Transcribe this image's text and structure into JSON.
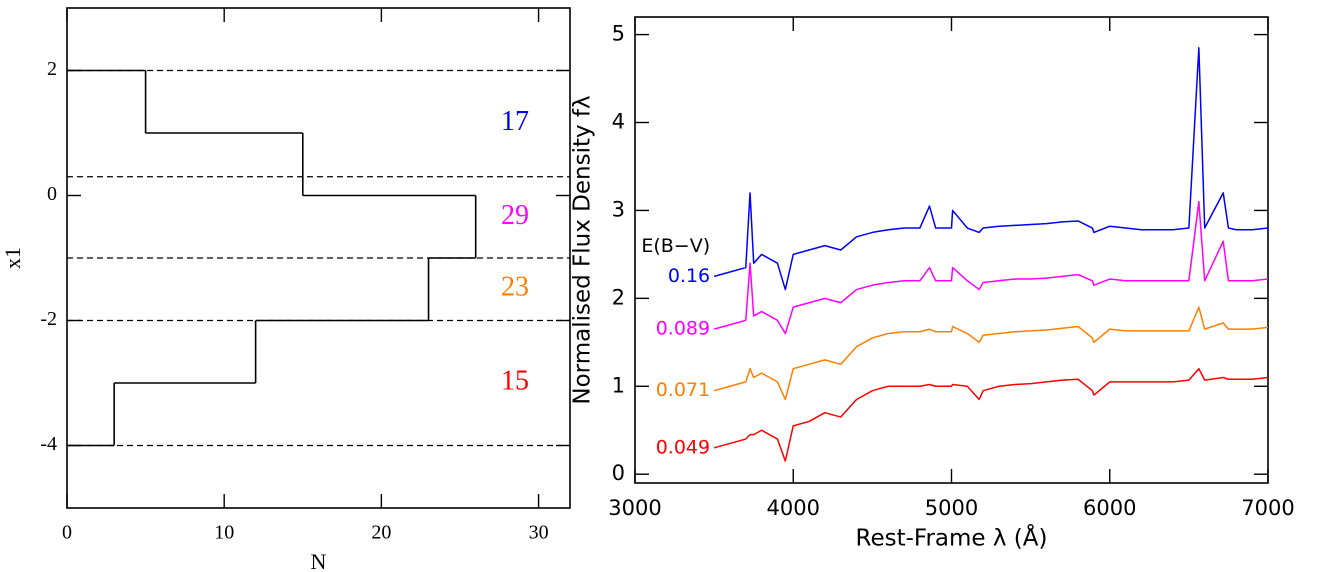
{
  "chart_data": [
    {
      "type": "histogram",
      "orientation": "horizontal",
      "xlabel": "N",
      "ylabel": "x1",
      "bins": [
        -4,
        -3,
        -2,
        -1,
        0,
        1,
        2
      ],
      "values": [
        3,
        12,
        23,
        26,
        15,
        5
      ],
      "color": "#000000",
      "xlim": [
        0,
        32
      ],
      "ylim": [
        -5,
        3
      ],
      "xticks": [
        0,
        10,
        20,
        30
      ],
      "yticks": [
        2,
        0,
        -2,
        -4
      ],
      "reference_lines": [
        2,
        0.3,
        -1,
        -2,
        -4
      ],
      "annotations": [
        {
          "text": "17",
          "color": "#0000ff"
        },
        {
          "text": "29",
          "color": "#ff00ff"
        },
        {
          "text": "23",
          "color": "#ff7f00"
        },
        {
          "text": "15",
          "color": "#ff0000"
        }
      ]
    },
    {
      "type": "line",
      "xlabel": "Rest-Frame λ (Å)",
      "ylabel": "Normalised Flux Density fλ",
      "legend_title": "E(B−V)",
      "xlim": [
        3000,
        7000
      ],
      "ylim": [
        -0.1,
        5.2
      ],
      "xticks": [
        3000,
        4000,
        5000,
        6000,
        7000
      ],
      "yticks": [
        0,
        1,
        2,
        3,
        4,
        5
      ],
      "x": [
        3500,
        3600,
        3700,
        3727,
        3750,
        3800,
        3900,
        3950,
        4000,
        4100,
        4200,
        4300,
        4400,
        4500,
        4600,
        4700,
        4800,
        4861,
        4900,
        5000,
        5007,
        5100,
        5175,
        5200,
        5300,
        5400,
        5500,
        5600,
        5700,
        5800,
        5890,
        5900,
        6000,
        6100,
        6200,
        6300,
        6400,
        6500,
        6563,
        6600,
        6717,
        6750,
        6800,
        6900,
        7000
      ],
      "series": [
        {
          "name": "0.16",
          "color": "#0000ff",
          "values": [
            2.25,
            2.3,
            2.35,
            3.2,
            2.4,
            2.5,
            2.4,
            2.1,
            2.5,
            2.55,
            2.6,
            2.55,
            2.7,
            2.75,
            2.78,
            2.8,
            2.8,
            3.05,
            2.8,
            2.8,
            3.0,
            2.8,
            2.75,
            2.8,
            2.82,
            2.83,
            2.84,
            2.85,
            2.87,
            2.88,
            2.8,
            2.75,
            2.82,
            2.8,
            2.78,
            2.78,
            2.78,
            2.8,
            4.85,
            2.8,
            3.2,
            2.8,
            2.78,
            2.78,
            2.8
          ]
        },
        {
          "name": "0.089",
          "color": "#ff00ff",
          "values": [
            1.65,
            1.7,
            1.75,
            2.4,
            1.8,
            1.85,
            1.75,
            1.6,
            1.9,
            1.95,
            2.0,
            1.95,
            2.1,
            2.15,
            2.18,
            2.2,
            2.2,
            2.35,
            2.2,
            2.2,
            2.35,
            2.2,
            2.1,
            2.18,
            2.2,
            2.22,
            2.22,
            2.23,
            2.25,
            2.27,
            2.2,
            2.15,
            2.22,
            2.2,
            2.2,
            2.2,
            2.2,
            2.2,
            3.1,
            2.2,
            2.65,
            2.2,
            2.2,
            2.2,
            2.22
          ]
        },
        {
          "name": "0.071",
          "color": "#ff7f00",
          "values": [
            0.95,
            1.0,
            1.05,
            1.2,
            1.1,
            1.15,
            1.05,
            0.85,
            1.2,
            1.25,
            1.3,
            1.25,
            1.45,
            1.55,
            1.6,
            1.62,
            1.62,
            1.65,
            1.62,
            1.62,
            1.68,
            1.6,
            1.5,
            1.58,
            1.6,
            1.62,
            1.63,
            1.64,
            1.66,
            1.68,
            1.55,
            1.5,
            1.65,
            1.63,
            1.63,
            1.63,
            1.63,
            1.63,
            1.9,
            1.65,
            1.72,
            1.65,
            1.65,
            1.65,
            1.67
          ]
        },
        {
          "name": "0.049",
          "color": "#ff0000",
          "values": [
            0.3,
            0.35,
            0.4,
            0.45,
            0.45,
            0.5,
            0.4,
            0.15,
            0.55,
            0.6,
            0.7,
            0.65,
            0.85,
            0.95,
            1.0,
            1.0,
            1.0,
            1.02,
            1.0,
            1.0,
            1.02,
            1.0,
            0.85,
            0.95,
            1.0,
            1.02,
            1.03,
            1.05,
            1.07,
            1.08,
            0.95,
            0.9,
            1.05,
            1.05,
            1.05,
            1.05,
            1.05,
            1.07,
            1.2,
            1.07,
            1.1,
            1.08,
            1.08,
            1.08,
            1.1
          ]
        }
      ]
    }
  ]
}
